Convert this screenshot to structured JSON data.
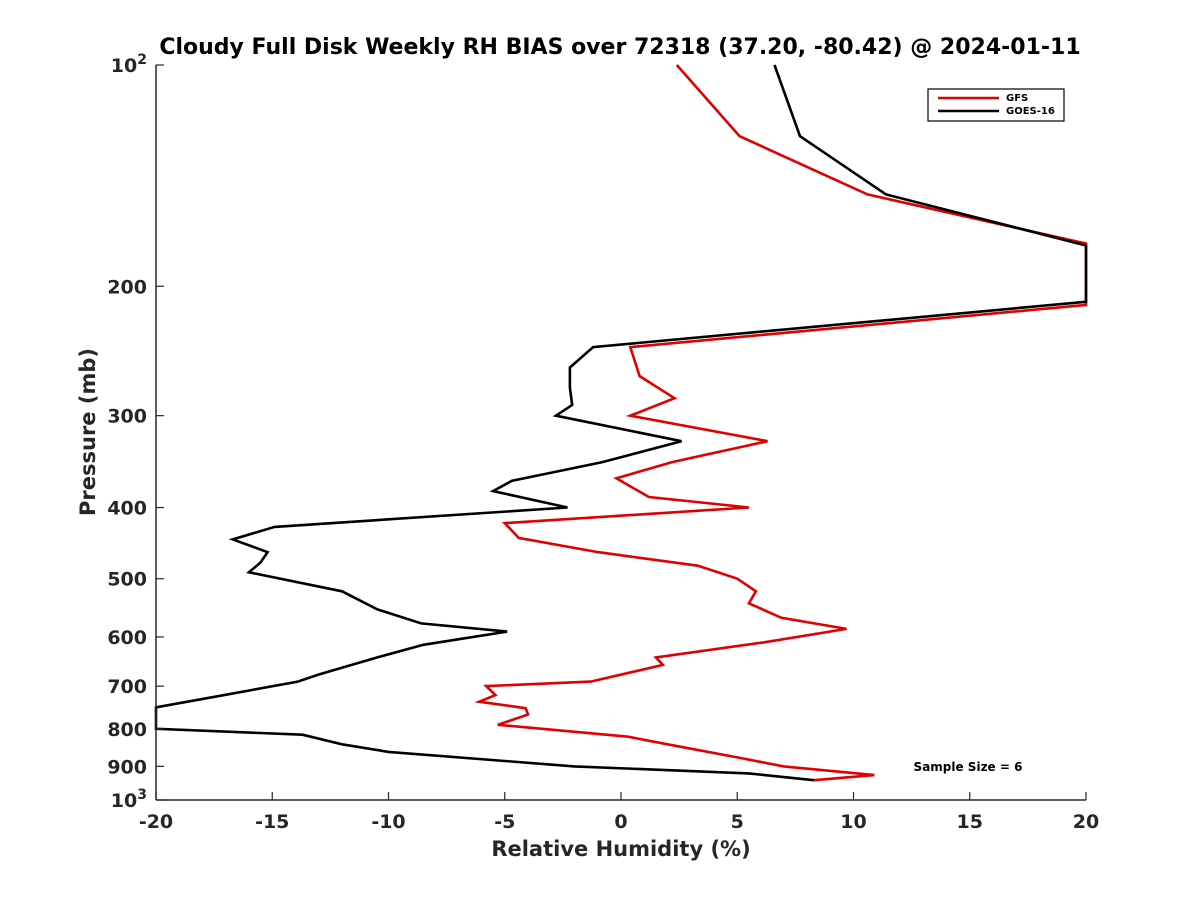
{
  "chart_data": {
    "type": "line",
    "title": "Cloudy Full Disk Weekly RH BIAS over 72318 (37.20, -80.42) @ 2024-01-11",
    "xlabel": "Relative Humidity (%)",
    "ylabel": "Pressure (mb)",
    "xlim": [
      -20,
      20
    ],
    "ylim": [
      100,
      1000
    ],
    "yscale": "log",
    "y_reversed": true,
    "grid": false,
    "legend_position": "top-right",
    "x_ticks": [
      -20,
      -15,
      -10,
      -5,
      0,
      5,
      10,
      15,
      20
    ],
    "x_tick_labels": [
      "-20",
      "-15",
      "-10",
      "-5",
      "0",
      "5",
      "10",
      "15",
      "20"
    ],
    "y_ticks": [
      100,
      200,
      300,
      400,
      500,
      600,
      700,
      800,
      900,
      1000
    ],
    "y_tick_labels": [
      {
        "base": "10",
        "exp": "2"
      },
      {
        "text": "200"
      },
      {
        "text": "300"
      },
      {
        "text": "400"
      },
      {
        "text": "500"
      },
      {
        "text": "600"
      },
      {
        "text": "700"
      },
      {
        "text": "800"
      },
      {
        "text": "900"
      },
      {
        "base": "10",
        "exp": "3"
      }
    ],
    "annotation": "Sample Size = 6",
    "series": [
      {
        "name": "GFS",
        "color": "#e00000",
        "points": [
          [
            2.4,
            100
          ],
          [
            5.1,
            125
          ],
          [
            10.6,
            150
          ],
          [
            20,
            175
          ],
          [
            20,
            212
          ],
          [
            0.4,
            242
          ],
          [
            0.8,
            265
          ],
          [
            2.3,
            284
          ],
          [
            0.4,
            300
          ],
          [
            6.3,
            325
          ],
          [
            2.2,
            347
          ],
          [
            -0.2,
            365
          ],
          [
            1.2,
            387
          ],
          [
            5.5,
            400
          ],
          [
            -5.0,
            420
          ],
          [
            -4.4,
            440
          ],
          [
            -1.0,
            460
          ],
          [
            3.3,
            480
          ],
          [
            5.0,
            500
          ],
          [
            5.8,
            520
          ],
          [
            5.5,
            540
          ],
          [
            6.9,
            565
          ],
          [
            9.7,
            585
          ],
          [
            6.2,
            610
          ],
          [
            1.5,
            640
          ],
          [
            1.8,
            655
          ],
          [
            -1.3,
            690
          ],
          [
            -5.8,
            700
          ],
          [
            -5.4,
            720
          ],
          [
            -6.1,
            735
          ],
          [
            -4.1,
            750
          ],
          [
            -4.0,
            765
          ],
          [
            -5.3,
            790
          ],
          [
            0.3,
            820
          ],
          [
            2.0,
            840
          ],
          [
            5.0,
            875
          ],
          [
            7.0,
            900
          ],
          [
            10.9,
            925
          ],
          [
            8.3,
            940
          ]
        ]
      },
      {
        "name": "GOES-16",
        "color": "#000000",
        "points": [
          [
            6.6,
            100
          ],
          [
            7.7,
            125
          ],
          [
            11.4,
            150
          ],
          [
            20,
            176
          ],
          [
            20,
            210
          ],
          [
            -1.2,
            242
          ],
          [
            -2.2,
            258
          ],
          [
            -2.2,
            275
          ],
          [
            -2.1,
            290
          ],
          [
            -2.8,
            300
          ],
          [
            2.6,
            325
          ],
          [
            -0.8,
            347
          ],
          [
            -4.7,
            368
          ],
          [
            -5.5,
            380
          ],
          [
            -2.3,
            400
          ],
          [
            -14.9,
            425
          ],
          [
            -16.7,
            442
          ],
          [
            -15.2,
            460
          ],
          [
            -15.5,
            475
          ],
          [
            -16.0,
            490
          ],
          [
            -12.0,
            520
          ],
          [
            -10.5,
            550
          ],
          [
            -8.6,
            575
          ],
          [
            -4.9,
            590
          ],
          [
            -8.5,
            615
          ],
          [
            -10.5,
            640
          ],
          [
            -13.0,
            675
          ],
          [
            -13.9,
            690
          ],
          [
            -17.6,
            725
          ],
          [
            -20.0,
            748
          ],
          [
            -20.0,
            800
          ],
          [
            -13.7,
            815
          ],
          [
            -12.0,
            840
          ],
          [
            -10.0,
            860
          ],
          [
            -5.0,
            885
          ],
          [
            -2.0,
            900
          ],
          [
            5.5,
            920
          ],
          [
            8.3,
            940
          ]
        ]
      }
    ]
  }
}
